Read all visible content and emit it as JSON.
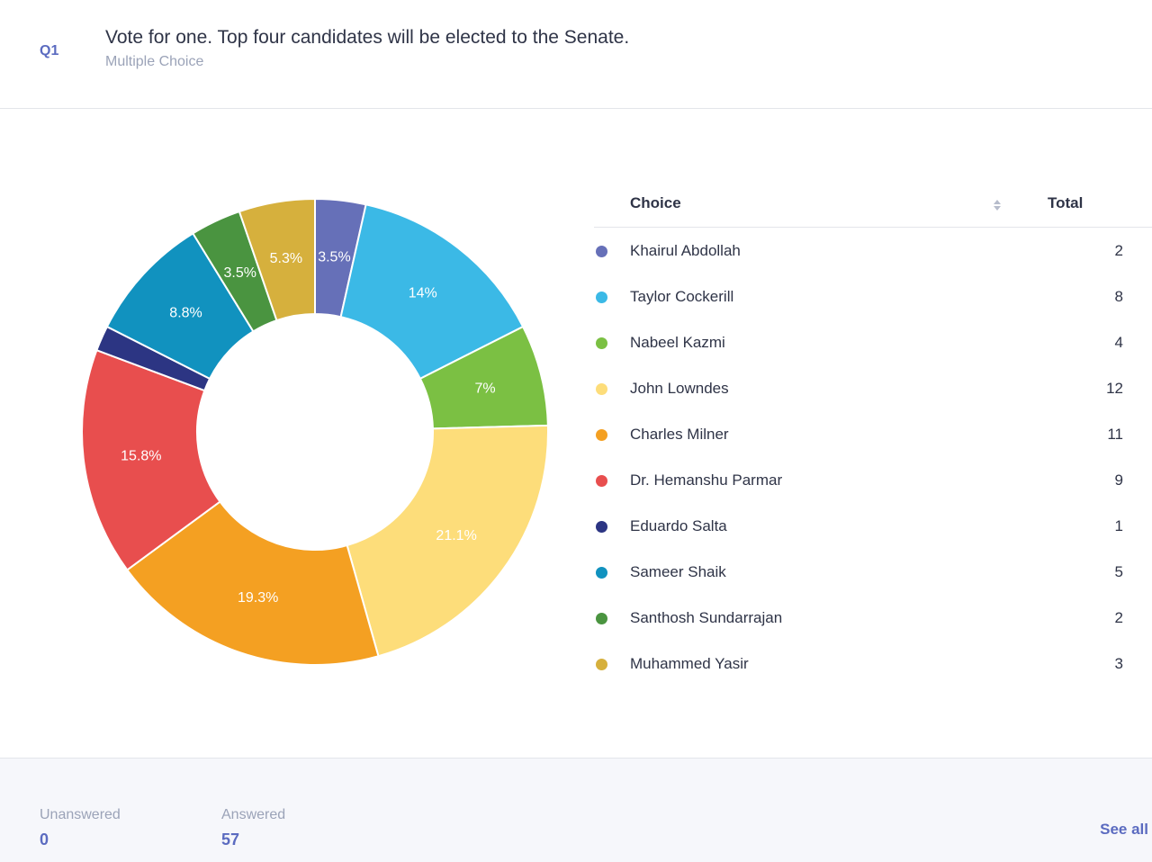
{
  "question": {
    "number": "Q1",
    "title": "Vote for one. Top four candidates will be elected to the Senate.",
    "type": "Multiple Choice"
  },
  "legend": {
    "choice_header": "Choice",
    "total_header": "Total",
    "sort_icon": "sort-icon"
  },
  "chart_data": {
    "type": "pie",
    "donut": true,
    "categories": [
      "Khairul Abdollah",
      "Taylor Cockerill",
      "Nabeel Kazmi",
      "John Lowndes",
      "Charles Milner",
      "Dr. Hemanshu Parmar",
      "Eduardo Salta",
      "Sameer Shaik",
      "Santhosh Sundarrajan",
      "Muhammed Yasir"
    ],
    "values": [
      2,
      8,
      4,
      12,
      11,
      9,
      1,
      5,
      2,
      3
    ],
    "data_labels": [
      "3.5%",
      "14%",
      "7%",
      "21.1%",
      "19.3%",
      "15.8%",
      "",
      "8.8%",
      "3.5%",
      "5.3%"
    ],
    "colors": [
      "#6670b8",
      "#3bb9e6",
      "#7bc043",
      "#fddd7a",
      "#f4a022",
      "#e84e4e",
      "#2c3583",
      "#1192bf",
      "#4a9440",
      "#d6b03d"
    ],
    "legend_placement": "right"
  },
  "footer": {
    "unanswered_label": "Unanswered",
    "unanswered_value": "0",
    "answered_label": "Answered",
    "answered_value": "57",
    "see_all": "See all"
  }
}
